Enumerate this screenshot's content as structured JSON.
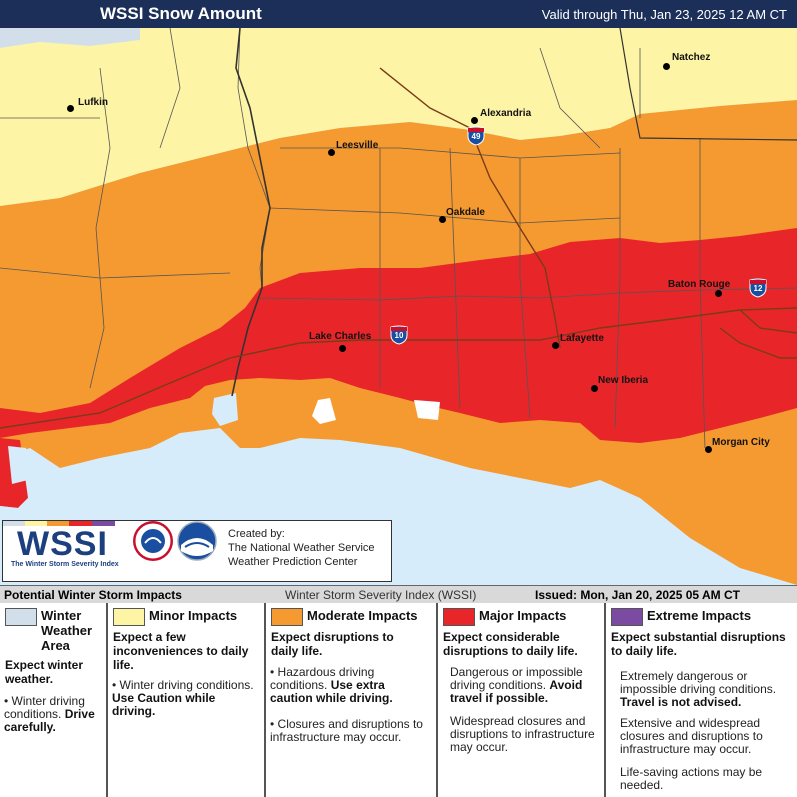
{
  "header": {
    "title": "WSSI Snow Amount",
    "valid": "Valid through Thu, Jan 23, 2025 12 AM CT"
  },
  "colors": {
    "winter": "#d2dfea",
    "minor": "#fdf5a5",
    "moderate": "#f59a30",
    "major": "#e8262a",
    "extreme": "#7a4ba1",
    "water": "#d6ecfa"
  },
  "cities": [
    {
      "name": "Lufkin"
    },
    {
      "name": "Alexandria"
    },
    {
      "name": "Natchez"
    },
    {
      "name": "Leesville"
    },
    {
      "name": "Oakdale"
    },
    {
      "name": "Baton Rouge"
    },
    {
      "name": "Lake Charles"
    },
    {
      "name": "Lafayette"
    },
    {
      "name": "New Iberia"
    },
    {
      "name": "Morgan City"
    }
  ],
  "highways": [
    {
      "number": "49"
    },
    {
      "number": "10"
    },
    {
      "number": "12"
    }
  ],
  "logo": {
    "wssi": "WSSI",
    "wssi_sub": "The Winter Storm Severity Index",
    "created_line1": "Created by:",
    "created_line2": "The National Weather Service",
    "created_line3": "Weather Prediction Center"
  },
  "info": {
    "left": "Potential Winter Storm Impacts",
    "middle": "Winter Storm Severity Index (WSSI)",
    "issued": "Issued: Mon, Jan 20, 2025 05 AM CT"
  },
  "legend": [
    {
      "label": "Winter Weather Area",
      "lead": "Expect winter weather.",
      "bullets": [
        {
          "text": "Winter driving conditions.",
          "bold": "Drive carefully."
        }
      ]
    },
    {
      "label": "Minor Impacts",
      "lead": "Expect a few inconveniences to daily life.",
      "bullets": [
        {
          "text": "Winter driving conditions.",
          "bold": "Use Caution while driving."
        }
      ]
    },
    {
      "label": "Moderate Impacts",
      "lead": "Expect disruptions to daily life.",
      "bullets": [
        {
          "text": "Hazardous driving conditions.",
          "bold": "Use extra caution while driving."
        },
        {
          "text": "Closures and disruptions to infrastructure may occur.",
          "bold": ""
        }
      ]
    },
    {
      "label": "Major Impacts",
      "lead": "Expect considerable disruptions to daily life.",
      "bullets": [
        {
          "text": "Dangerous or impossible driving conditions.",
          "bold": "Avoid travel if possible."
        },
        {
          "text": "Widespread closures and disruptions to infrastructure may occur.",
          "bold": ""
        }
      ]
    },
    {
      "label": "Extreme Impacts",
      "lead": "Expect substantial disruptions to daily life.",
      "bullets": [
        {
          "text": "Extremely dangerous or impossible driving conditions.",
          "bold": "Travel is not advised."
        },
        {
          "text": "Extensive and widespread closures and disruptions to infrastructure may occur.",
          "bold": ""
        },
        {
          "text": "Life-saving actions may be needed.",
          "bold": ""
        }
      ]
    }
  ]
}
